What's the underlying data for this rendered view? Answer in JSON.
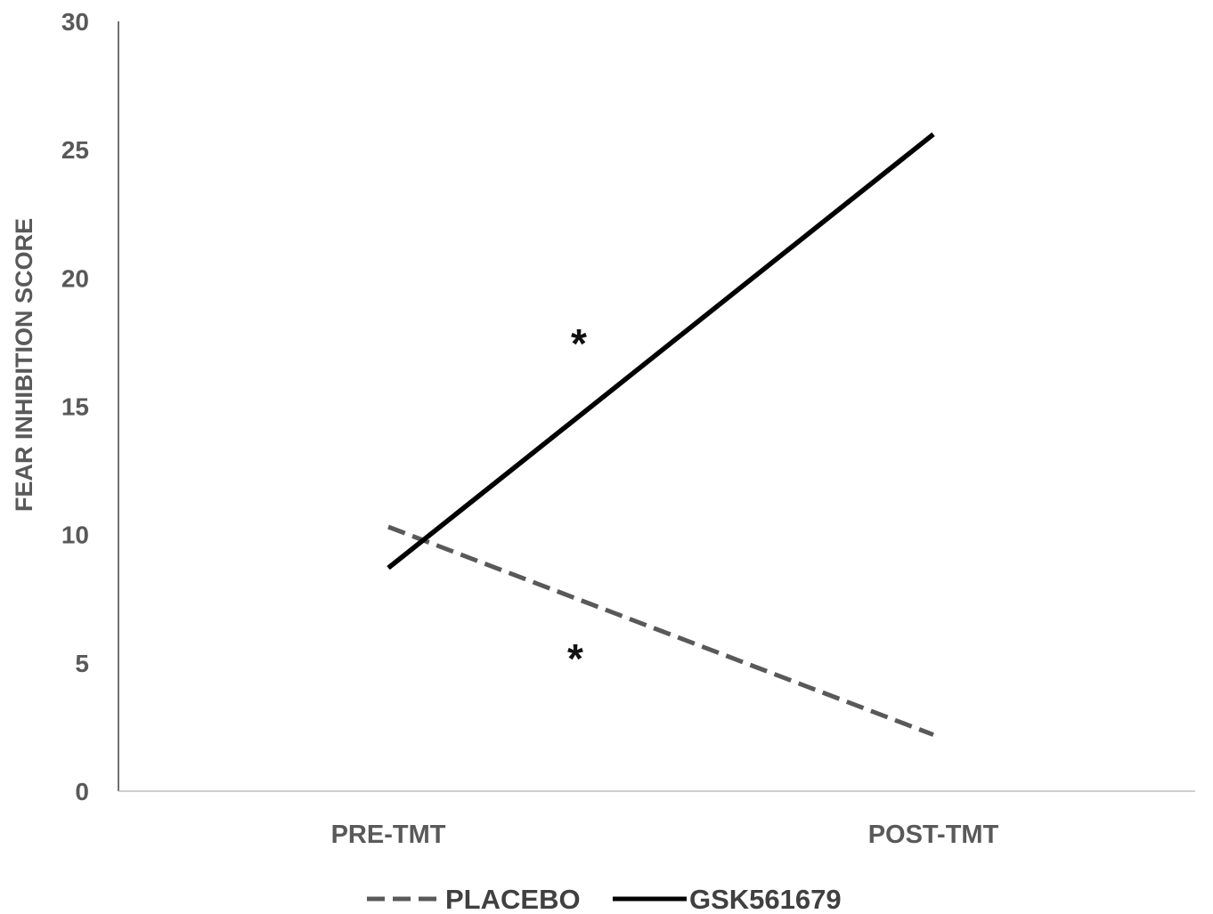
{
  "chart_data": {
    "type": "line",
    "title": "",
    "xlabel": "",
    "ylabel": "FEAR INHIBITION SCORE",
    "categories": [
      "PRE-TMT",
      "POST-TMT"
    ],
    "ylim": [
      0,
      30
    ],
    "yticks": [
      "0",
      "5",
      "10",
      "15",
      "20",
      "25",
      "30"
    ],
    "grid": false,
    "legend_position": "bottom",
    "series": [
      {
        "name": "PLACEBO",
        "values": [
          10.3,
          2.2
        ],
        "color": "#595959",
        "line_style": "dashed"
      },
      {
        "name": "GSK561679",
        "values": [
          8.7,
          25.6
        ],
        "color": "#000000",
        "line_style": "solid"
      }
    ],
    "annotations": [
      {
        "text": "*",
        "series": "GSK561679"
      },
      {
        "text": "*",
        "series": "PLACEBO"
      }
    ]
  }
}
